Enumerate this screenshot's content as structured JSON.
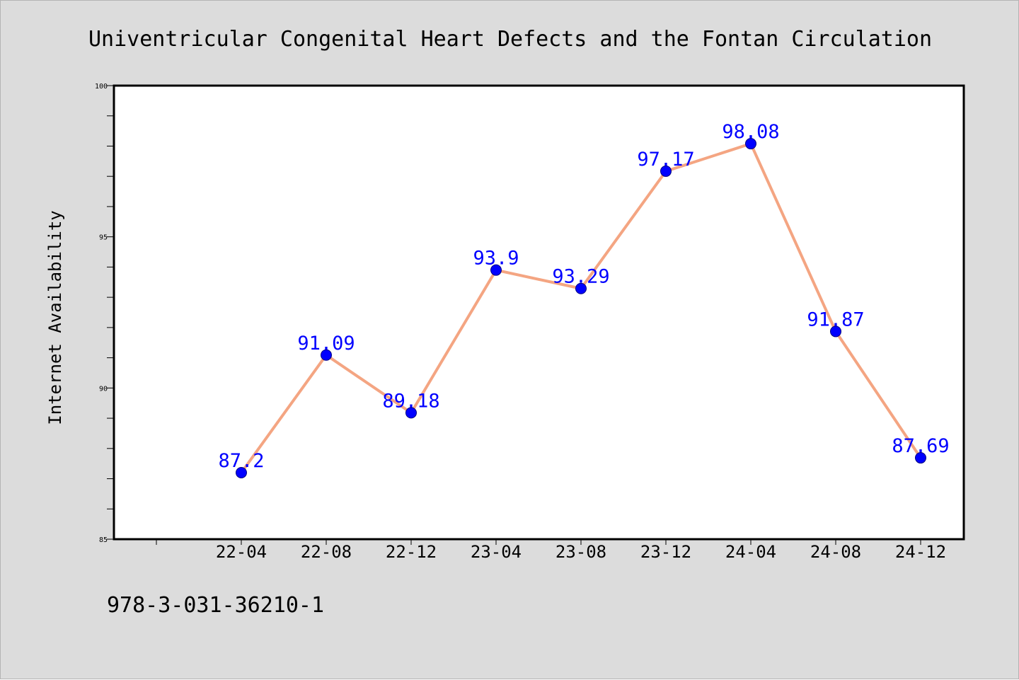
{
  "colors": {
    "figure_background": "#dcdcdc",
    "plot_background": "#ffffff",
    "line": "#f4a582",
    "marker": "#0000ff",
    "data_label": "#0000ff",
    "axis": "#000000"
  },
  "footer_text": "978-3-031-36210-1",
  "chart_data": {
    "type": "line",
    "title": "Univentricular Congenital Heart Defects and the Fontan Circulation",
    "xlabel": "",
    "ylabel": "Internet Availability",
    "categories": [
      "22-04",
      "22-08",
      "22-12",
      "23-04",
      "23-08",
      "23-12",
      "24-04",
      "24-08",
      "24-12"
    ],
    "series": [
      {
        "values": [
          87.2,
          91.09,
          89.18,
          93.9,
          93.29,
          97.17,
          98.08,
          91.87,
          87.69
        ],
        "labels": [
          "87.2",
          "91.09",
          "89.18",
          "93.9",
          "93.29",
          "97.17",
          "98.08",
          "91.87",
          "87.69"
        ]
      }
    ],
    "ylim": [
      85,
      100
    ],
    "y_major_ticks": [
      85,
      90,
      95,
      100
    ],
    "y_minor_step": 1,
    "grid": false,
    "legend": "none"
  }
}
